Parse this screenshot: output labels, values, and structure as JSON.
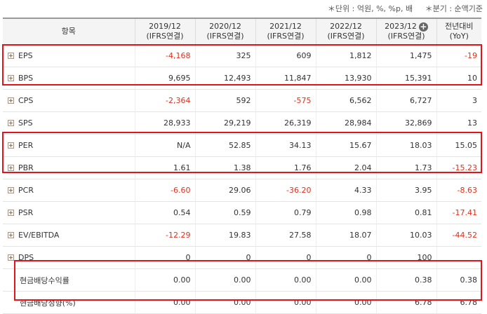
{
  "units": {
    "unit": "＊단위 : 억원, %, %p, 배",
    "period": "＊분기 : 순액기준"
  },
  "columns": [
    {
      "label": "항목"
    },
    {
      "label": "2019/12",
      "sub": "(IFRS연결)"
    },
    {
      "label": "2020/12",
      "sub": "(IFRS연결)"
    },
    {
      "label": "2021/12",
      "sub": "(IFRS연결)"
    },
    {
      "label": "2022/12",
      "sub": "(IFRS연결)"
    },
    {
      "label": "2023/12",
      "sub": "(IFRS연결)"
    },
    {
      "label": "전년대비",
      "sub": "(YoY)"
    }
  ],
  "rows": [
    {
      "name": "EPS",
      "expand": true,
      "values": [
        "-4,168",
        "325",
        "609",
        "1,812",
        "1,475",
        "-19"
      ]
    },
    {
      "name": "BPS",
      "expand": true,
      "values": [
        "9,695",
        "12,493",
        "11,847",
        "13,930",
        "15,391",
        "10"
      ]
    },
    {
      "name": "CPS",
      "expand": true,
      "values": [
        "-2,364",
        "592",
        "-575",
        "6,562",
        "6,727",
        "3"
      ]
    },
    {
      "name": "SPS",
      "expand": true,
      "values": [
        "28,933",
        "29,219",
        "26,319",
        "28,984",
        "32,869",
        "13"
      ]
    },
    {
      "name": "PER",
      "expand": true,
      "values": [
        "N/A",
        "52.85",
        "34.13",
        "15.67",
        "18.03",
        "15.05"
      ]
    },
    {
      "name": "PBR",
      "expand": true,
      "values": [
        "1.61",
        "1.38",
        "1.76",
        "2.04",
        "1.73",
        "-15.23"
      ]
    },
    {
      "name": "PCR",
      "expand": true,
      "values": [
        "-6.60",
        "29.06",
        "-36.20",
        "4.33",
        "3.95",
        "-8.63"
      ]
    },
    {
      "name": "PSR",
      "expand": true,
      "values": [
        "0.54",
        "0.59",
        "0.79",
        "0.98",
        "0.81",
        "-17.41"
      ]
    },
    {
      "name": "EV/EBITDA",
      "expand": true,
      "values": [
        "-12.29",
        "19.83",
        "27.58",
        "18.07",
        "10.03",
        "-44.52"
      ]
    },
    {
      "name": "DPS",
      "expand": true,
      "values": [
        "0",
        "0",
        "0",
        "0",
        "100",
        ""
      ]
    },
    {
      "name": "현금배당수익률",
      "expand": false,
      "values": [
        "0.00",
        "0.00",
        "0.00",
        "0.00",
        "0.38",
        "0.38"
      ]
    },
    {
      "name": "현금배당성향(%)",
      "expand": false,
      "values": [
        "0.00",
        "0.00",
        "0.00",
        "0.00",
        "6.78",
        "6.78"
      ]
    }
  ],
  "colors": {
    "negative": "#e0311f",
    "highlight": "#e2141a"
  },
  "icons": {
    "expand": "plus-square-icon",
    "add_column": "plus-circle-icon"
  }
}
